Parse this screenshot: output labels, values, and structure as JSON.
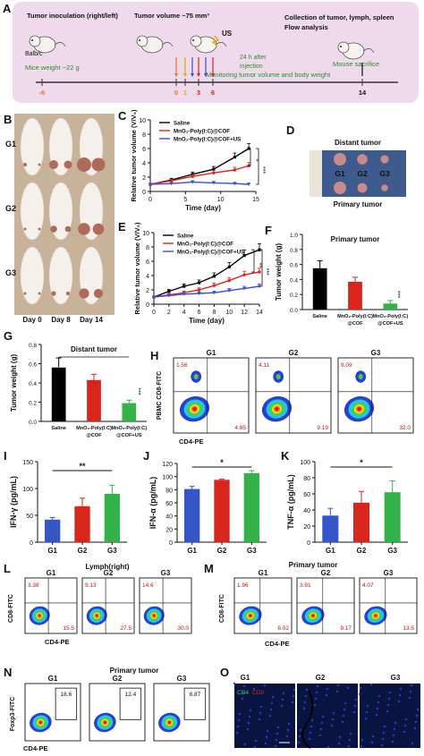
{
  "figure": {
    "panel_letters": [
      "A",
      "B",
      "C",
      "D",
      "E",
      "F",
      "G",
      "H",
      "I",
      "J",
      "K",
      "L",
      "M",
      "N",
      "O"
    ],
    "colors": {
      "saline": "#000000",
      "g2": "#e0231e",
      "g3": "#3a4fd6",
      "bar_black": "#000000",
      "bar_red": "#d9261c",
      "bar_green": "#33b24a",
      "bar_blue": "#3556c6",
      "timeline_bg": "#efd9ec"
    }
  },
  "panel_a": {
    "left_title": "Tumor inoculation (right/left)",
    "mid_title": "Tumor volume ~75 mm³",
    "right_title_1": "Collection of tumor, lymph, spleen",
    "right_title_2": "Flow analysis",
    "mouse_label": "Balb/c",
    "mice_weight": "Mice weight ~22 g",
    "us_label": "US",
    "injection_note_1": "24 h after",
    "injection_note_2": "injection",
    "monitoring": "Monitoring tumor volume and body weight",
    "sacrifice": "Mouse sacrifice",
    "ticks": [
      "-6",
      "0",
      "1",
      "3",
      "6",
      "14"
    ]
  },
  "panel_b": {
    "rows": [
      "G1",
      "G2",
      "G3"
    ],
    "days": [
      "Day 0",
      "Day 8",
      "Day 14"
    ]
  },
  "panel_c": {
    "chart_data": {
      "type": "line",
      "ylabel": "Relative tumor volume (V/V₀)",
      "xlabel": "Time (day)",
      "xlim": [
        0,
        15
      ],
      "ylim": [
        0,
        10
      ],
      "xticks": [
        "0",
        "5",
        "10",
        "15"
      ],
      "yticks": [
        "0",
        "2",
        "4",
        "6",
        "8",
        "10"
      ],
      "x": [
        0,
        3,
        6,
        9,
        12,
        14
      ],
      "series": [
        {
          "name": "Saline",
          "values": [
            1.0,
            1.6,
            2.4,
            3.1,
            4.8,
            6.0
          ]
        },
        {
          "name": "MnO₂-Poly(I:C)@COF",
          "values": [
            1.0,
            1.5,
            2.1,
            2.6,
            3.0,
            3.6
          ]
        },
        {
          "name": "MnO₂-Poly(I:C)@COF+US",
          "values": [
            1.0,
            1.1,
            1.3,
            1.2,
            1.1,
            1.0
          ]
        }
      ],
      "significance": [
        "*",
        "***"
      ]
    }
  },
  "panel_d": {
    "top": "Distant tumor",
    "bottom": "Primary tumor",
    "groups": [
      "G1",
      "G2",
      "G3"
    ]
  },
  "panel_e": {
    "chart_data": {
      "type": "line",
      "ylabel": "Relative tumor volume (V/V₀)",
      "xlabel": "Time (day)",
      "xlim": [
        0,
        14
      ],
      "ylim": [
        0,
        10
      ],
      "xticks": [
        "0",
        "2",
        "4",
        "6",
        "8",
        "10",
        "12",
        "14"
      ],
      "yticks": [
        "0",
        "2",
        "4",
        "6",
        "8",
        "10"
      ],
      "x": [
        0,
        2,
        4,
        6,
        8,
        10,
        12,
        14
      ],
      "series": [
        {
          "name": "Saline",
          "values": [
            1.0,
            1.8,
            2.5,
            3.0,
            3.9,
            5.2,
            6.8,
            7.6
          ]
        },
        {
          "name": "MnO₂-Poly(I:C)@COF",
          "values": [
            1.0,
            1.3,
            1.6,
            2.0,
            2.6,
            3.3,
            4.1,
            4.5
          ]
        },
        {
          "name": "MnO₂-Poly(I:C)@COF+US",
          "values": [
            1.0,
            1.2,
            1.4,
            1.5,
            1.6,
            1.9,
            2.2,
            2.5
          ]
        }
      ],
      "significance": [
        "**",
        "***"
      ]
    }
  },
  "panel_f": {
    "chart_data": {
      "type": "bar",
      "title": "Primary tumor",
      "ylabel": "Tumor weight (g)",
      "ylim": [
        0,
        1.0
      ],
      "yticks": [
        "0.0",
        "0.2",
        "0.4",
        "0.6",
        "0.8",
        "1.0"
      ],
      "categories": [
        "Saline",
        "MnO₂-Poly(I:C)@COF",
        "MnO₂-Poly(I:C)@COF+US"
      ],
      "values": [
        0.55,
        0.37,
        0.08
      ],
      "errors": [
        0.1,
        0.06,
        0.04
      ],
      "significance": "***"
    }
  },
  "panel_g": {
    "chart_data": {
      "type": "bar",
      "title": "Distant tumor",
      "ylabel": "Tumor weight (g)",
      "ylim": [
        0,
        0.8
      ],
      "yticks": [
        "0.0",
        "0.2",
        "0.4",
        "0.6",
        "0.8"
      ],
      "categories": [
        "Saline",
        "MnO₂-Poly(I:C)@COF",
        "MnO₂-Poly(I:C)@COF+US"
      ],
      "values": [
        0.56,
        0.43,
        0.19
      ],
      "errors": [
        0.1,
        0.06,
        0.03
      ],
      "significance": "***"
    }
  },
  "panel_h": {
    "ylabel": "PBMC CD8-FITC",
    "xlabel": "CD4-PE",
    "plots": [
      {
        "name": "G1",
        "ul": "1.56",
        "lr": "4.85"
      },
      {
        "name": "G2",
        "ul": "4.11",
        "lr": "9.19"
      },
      {
        "name": "G3",
        "ul": "9.09",
        "lr": "32.0"
      }
    ]
  },
  "panel_i": {
    "chart_data": {
      "type": "bar",
      "ylabel": "IFN-γ (pg/mL)",
      "ylim": [
        0,
        150
      ],
      "yticks": [
        "0",
        "50",
        "100",
        "150"
      ],
      "categories": [
        "G1",
        "G2",
        "G3"
      ],
      "values": [
        42,
        67,
        90
      ],
      "errors": [
        4,
        15,
        16
      ],
      "significance": "**"
    }
  },
  "panel_j": {
    "chart_data": {
      "type": "bar",
      "ylabel": "IFN-α (pg/mL)",
      "ylim": [
        0,
        120
      ],
      "yticks": [
        "0",
        "20",
        "40",
        "60",
        "80",
        "100",
        "120"
      ],
      "categories": [
        "G1",
        "G2",
        "G3"
      ],
      "values": [
        81,
        95,
        105
      ],
      "errors": [
        4,
        1,
        4
      ],
      "significance": "*"
    }
  },
  "panel_k": {
    "chart_data": {
      "type": "bar",
      "ylabel": "TNF-α (pg/mL)",
      "ylim": [
        0,
        100
      ],
      "yticks": [
        "0",
        "20",
        "40",
        "60",
        "80",
        "100"
      ],
      "categories": [
        "G1",
        "G2",
        "G3"
      ],
      "values": [
        33,
        49,
        62
      ],
      "errors": [
        9,
        14,
        14
      ],
      "significance": "*"
    }
  },
  "panel_l": {
    "title": "Lymph(right)",
    "ylabel": "CD8-FITC",
    "xlabel": "CD4-PE",
    "plots": [
      {
        "name": "G1",
        "ul": "3.38",
        "lr": "15.5"
      },
      {
        "name": "G2",
        "ul": "9.13",
        "lr": "27.5"
      },
      {
        "name": "G3",
        "ul": "14.6",
        "lr": "30.0"
      }
    ]
  },
  "panel_m": {
    "title": "Primary tumor",
    "ylabel": "CD8-FITC",
    "xlabel": "CD4-PE",
    "plots": [
      {
        "name": "G1",
        "ul": "1.96",
        "lr": "6.02"
      },
      {
        "name": "G2",
        "ul": "3.91",
        "lr": "9.17"
      },
      {
        "name": "G3",
        "ul": "4.07",
        "lr": "13.5"
      }
    ]
  },
  "panel_n": {
    "title": "Primary tumor",
    "ylabel": "Foxp3-FITC",
    "xlabel": "CD4-PE",
    "plots": [
      {
        "name": "G1",
        "val": "18.6"
      },
      {
        "name": "G2",
        "val": "12.4"
      },
      {
        "name": "G3",
        "val": "8.87"
      }
    ]
  },
  "panel_o": {
    "groups": [
      "G1",
      "G2",
      "G3"
    ],
    "legend_cd4": "CD4",
    "legend_cd8": "CD8"
  }
}
